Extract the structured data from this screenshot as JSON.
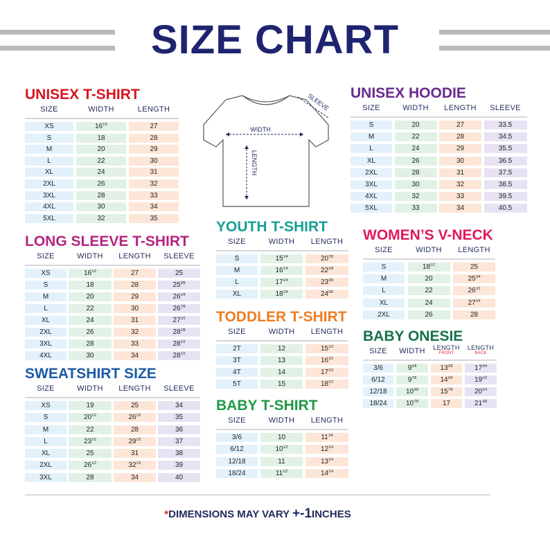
{
  "title": "SIZE CHART",
  "colors": {
    "title": "#1f2470",
    "size": "#e3f1fb",
    "width": "#e2f1e5",
    "length": "#fde6d8",
    "sleeve": "#e7e3f3"
  },
  "diagram": {
    "width": "WIDTH",
    "length": "LENGTH",
    "sleeve": "SLEEVE"
  },
  "tables": [
    {
      "id": "unisex-t-shirt",
      "title": "UNISEX T-SHIRT",
      "color": "#d7141f",
      "headers": [
        "SIZE",
        "WIDTH",
        "LENGTH"
      ],
      "rows": [
        [
          "XS",
          "16 1/2",
          "27"
        ],
        [
          "S",
          "18",
          "28"
        ],
        [
          "M",
          "20",
          "29"
        ],
        [
          "L",
          "22",
          "30"
        ],
        [
          "XL",
          "24",
          "31"
        ],
        [
          "2XL",
          "26",
          "32"
        ],
        [
          "3XL",
          "28",
          "33"
        ],
        [
          "4XL",
          "30",
          "34"
        ],
        [
          "5XL",
          "32",
          "35"
        ]
      ]
    },
    {
      "id": "long-sleeve-t-shirt",
      "title": "LONG SLEEVE T-SHIRT",
      "color": "#b5247f",
      "headers": [
        "SIZE",
        "WIDTH",
        "LENGTH",
        "SLEEVE"
      ],
      "rows": [
        [
          "XS",
          "16 1/2",
          "27",
          "25"
        ],
        [
          "S",
          "18",
          "28",
          "25 5/8"
        ],
        [
          "M",
          "20",
          "29",
          "26 1/4"
        ],
        [
          "L",
          "22",
          "30",
          "26 7/8"
        ],
        [
          "XL",
          "24",
          "31",
          "27 1/2"
        ],
        [
          "2XL",
          "26",
          "32",
          "28 1/8"
        ],
        [
          "3XL",
          "28",
          "33",
          "28 1/2"
        ],
        [
          "4XL",
          "30",
          "34",
          "28 1/2"
        ]
      ]
    },
    {
      "id": "sweatshirt-size",
      "title": "SWEATSHIRT SIZE",
      "color": "#1c5aa6",
      "headers": [
        "SIZE",
        "WIDTH",
        "LENGTH",
        "SLEEVE"
      ],
      "rows": [
        [
          "XS",
          "19",
          "25",
          "34"
        ],
        [
          "S",
          "20 1/2",
          "26 1/2",
          "35"
        ],
        [
          "M",
          "22",
          "28",
          "36"
        ],
        [
          "L",
          "23 1/2",
          "29 1/2",
          "37"
        ],
        [
          "XL",
          "25",
          "31",
          "38"
        ],
        [
          "2XL",
          "26 1/2",
          "32 1/2",
          "39"
        ],
        [
          "3XL",
          "28",
          "34",
          "40"
        ]
      ]
    },
    {
      "id": "youth-t-shirt",
      "title": "YOUTH T-SHIRT",
      "color": "#17a096",
      "headers": [
        "SIZE",
        "WIDTH",
        "LENGTH"
      ],
      "rows": [
        [
          "S",
          "15 1/4",
          "20 7/8"
        ],
        [
          "M",
          "16 1/4",
          "22 1/8"
        ],
        [
          "L",
          "17 1/4",
          "23 3/8"
        ],
        [
          "XL",
          "18 1/4",
          "24 5/8"
        ]
      ]
    },
    {
      "id": "toddler-t-shirt",
      "title": "TODDLER T-SHIRT",
      "color": "#ee7d22",
      "headers": [
        "SIZE",
        "WIDTH",
        "LENGTH"
      ],
      "rows": [
        [
          "2T",
          "12",
          "15 1/2"
        ],
        [
          "3T",
          "13",
          "16 1/2"
        ],
        [
          "4T",
          "14",
          "17 1/2"
        ],
        [
          "5T",
          "15",
          "18 1/2"
        ]
      ]
    },
    {
      "id": "baby-t-shirt",
      "title": "BABY T-SHIRT",
      "color": "#1f9a45",
      "headers": [
        "SIZE",
        "WIDTH",
        "LENGTH"
      ],
      "rows": [
        [
          "3/6",
          "10",
          "11 1/4"
        ],
        [
          "6/12",
          "10 1/2",
          "12 1/4"
        ],
        [
          "12/18",
          "11",
          "13 1/4"
        ],
        [
          "18/24",
          "11 1/2",
          "14 1/4"
        ]
      ]
    },
    {
      "id": "unisex-hoodie",
      "title": "UNISEX HOODIE",
      "color": "#6a2a8e",
      "headers": [
        "SIZE",
        "WIDTH",
        "LENGTH",
        "SLEEVE"
      ],
      "rows": [
        [
          "S",
          "20",
          "27",
          "33.5"
        ],
        [
          "M",
          "22",
          "28",
          "34.5"
        ],
        [
          "L",
          "24",
          "29",
          "35.5"
        ],
        [
          "XL",
          "26",
          "30",
          "36.5"
        ],
        [
          "2XL",
          "28",
          "31",
          "37.5"
        ],
        [
          "3XL",
          "30",
          "32",
          "38.5"
        ],
        [
          "4XL",
          "32",
          "33",
          "39.5"
        ],
        [
          "5XL",
          "33",
          "34",
          "40.5"
        ]
      ]
    },
    {
      "id": "womens-v-neck",
      "title": "WOMEN’S V-NECK",
      "color": "#e0195a",
      "headers": [
        "SIZE",
        "WIDTH",
        "LENGTH"
      ],
      "rows": [
        [
          "S",
          "18 1/2",
          "25"
        ],
        [
          "M",
          "20",
          "25 3/4"
        ],
        [
          "L",
          "22",
          "26 1/2"
        ],
        [
          "XL",
          "24",
          "27 1/4"
        ],
        [
          "2XL",
          "26",
          "28"
        ]
      ]
    },
    {
      "id": "baby-onesie",
      "title": "BABY ONESIE",
      "color": "#17714a",
      "headers": [
        "SIZE",
        "WIDTH",
        "LENGTH|FRONT",
        "LENGTH|BACK"
      ],
      "rows": [
        [
          "3/6",
          "9 3/8",
          "13 3/8",
          "17 3/4"
        ],
        [
          "6/12",
          "9 7/8",
          "14 3/4",
          "19 1/2"
        ],
        [
          "12/18",
          "10 3/8",
          "15 7/8",
          "20 1/4"
        ],
        [
          "18/24",
          "10 7/8",
          "17",
          "21 3/8"
        ]
      ]
    }
  ],
  "footer": {
    "asterisk": "*",
    "text": "DIMENSIONS MAY VARY",
    "plusminus": "+-1",
    "unit": "INCHES"
  }
}
